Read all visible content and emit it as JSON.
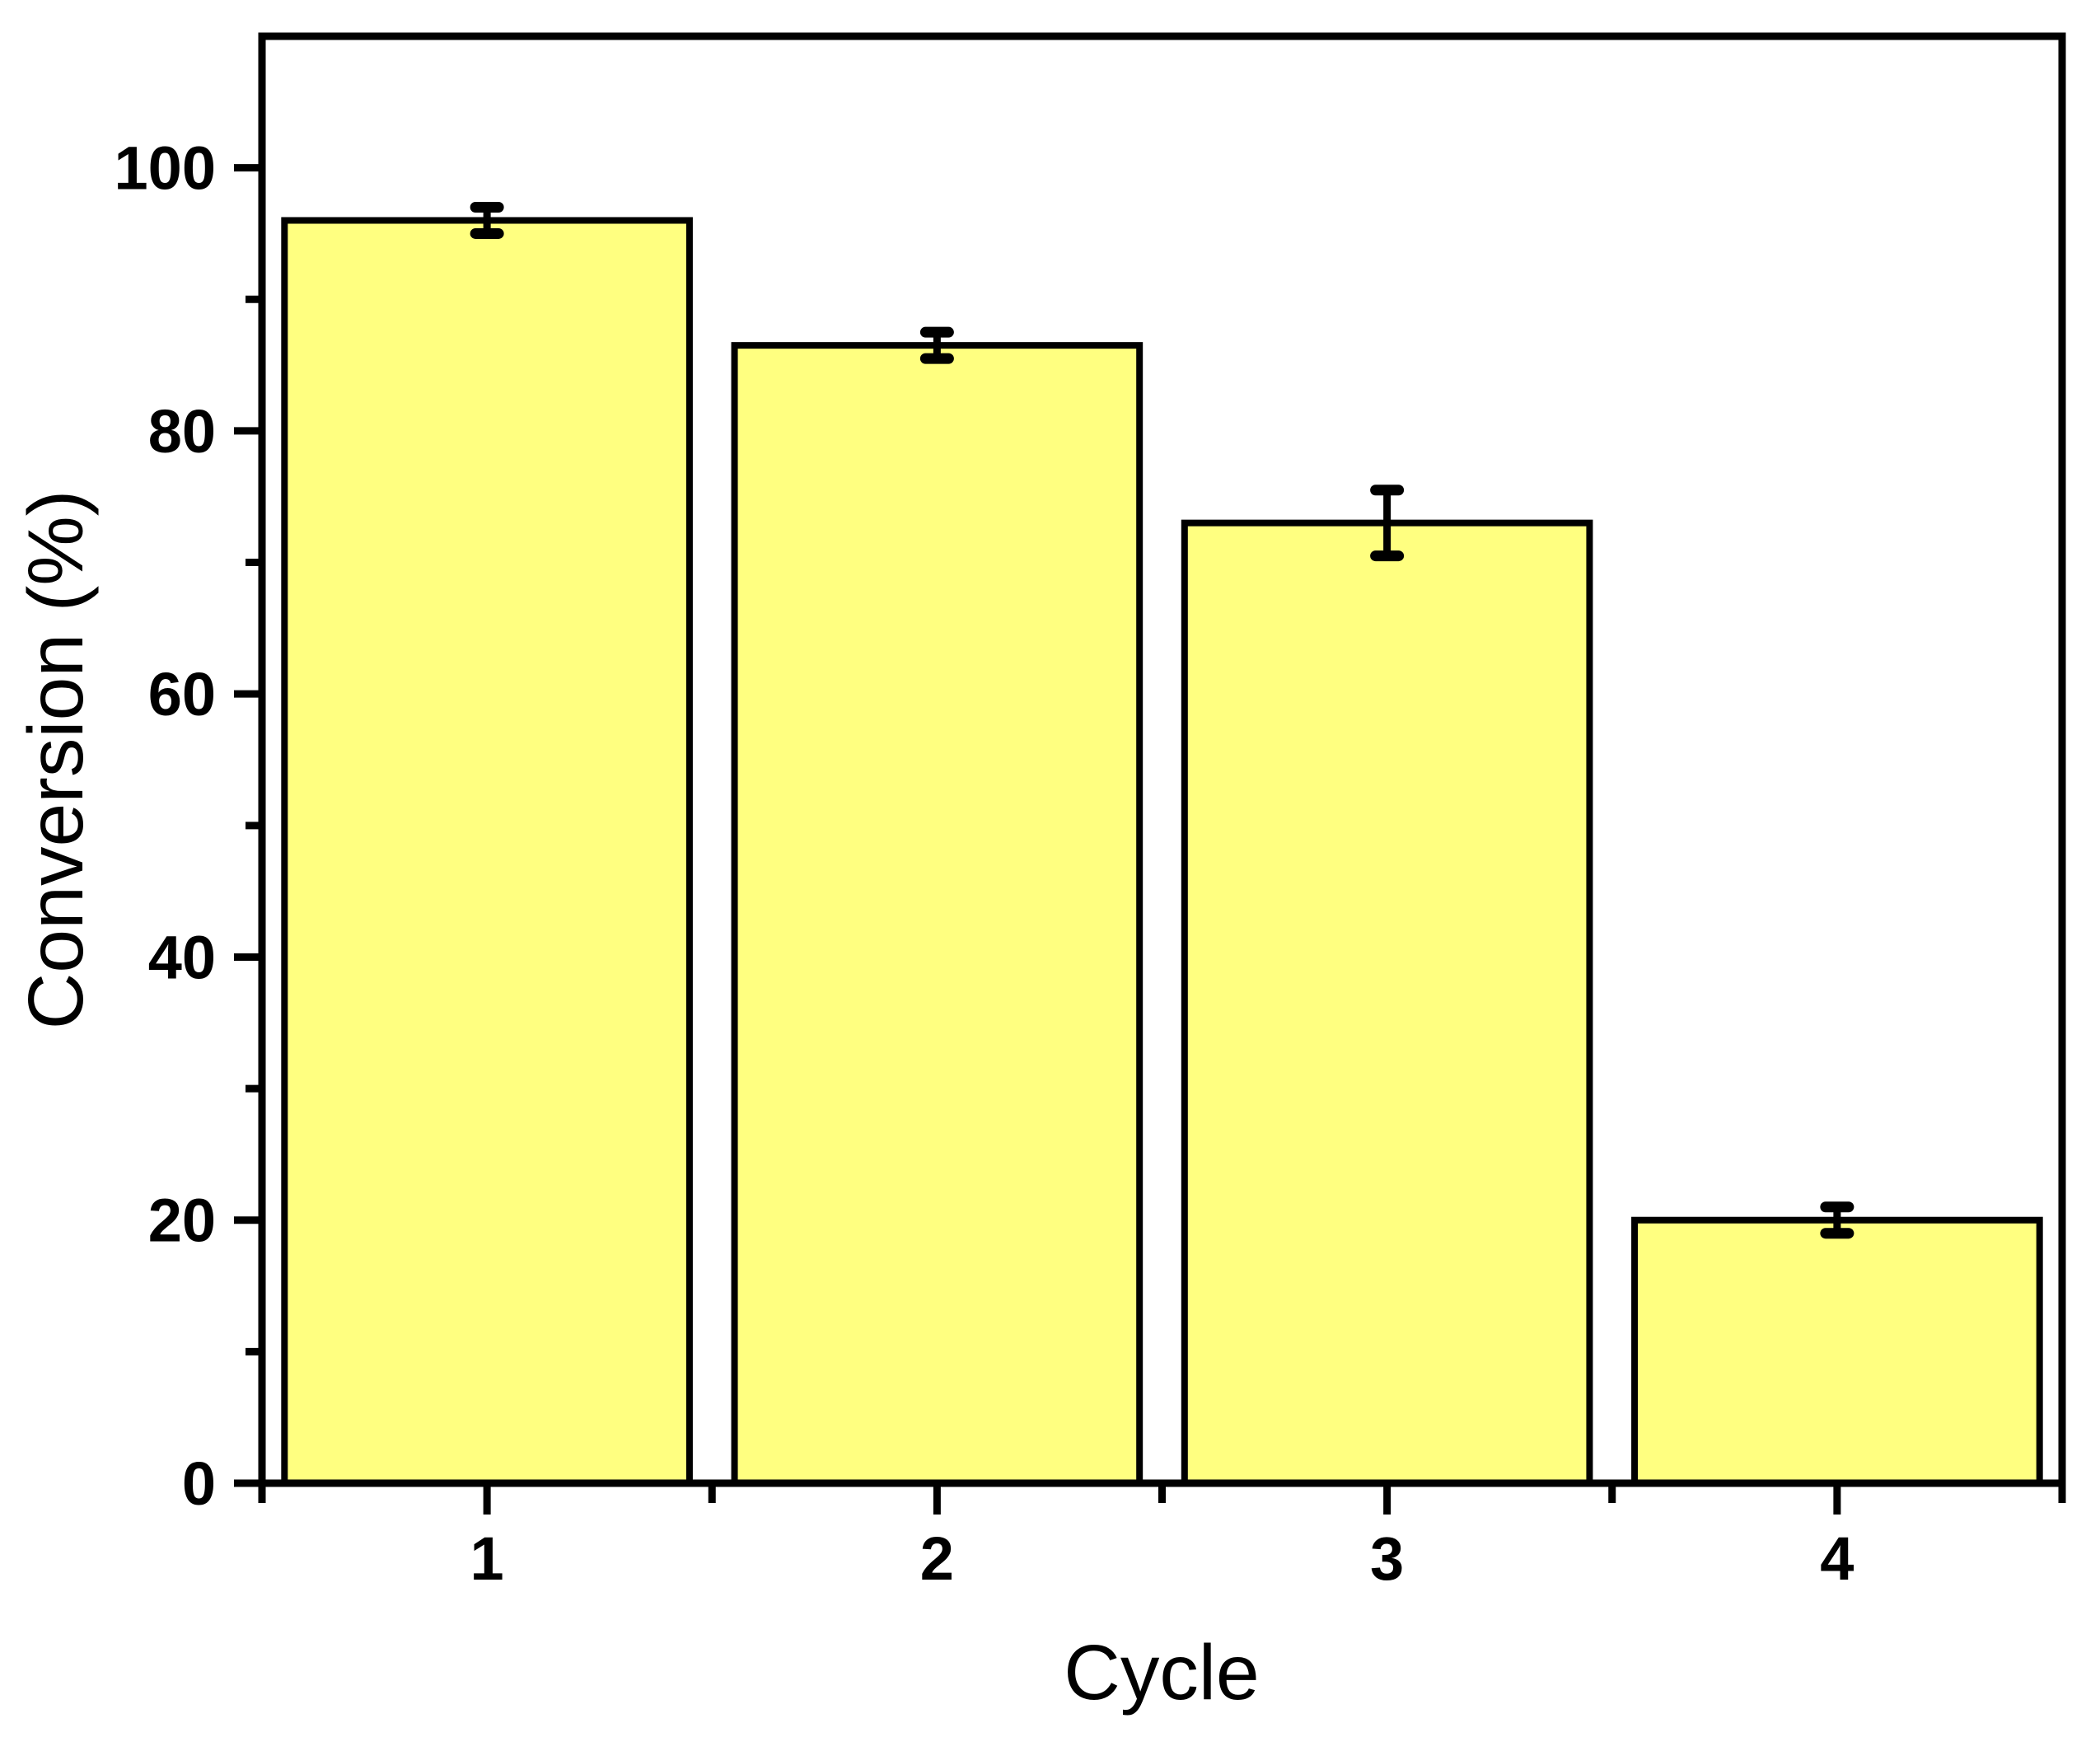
{
  "chart_data": {
    "type": "bar",
    "categories": [
      "1",
      "2",
      "3",
      "4"
    ],
    "values": [
      96,
      86.5,
      73,
      20
    ],
    "errors": [
      1,
      1,
      2.5,
      1
    ],
    "title": "",
    "xlabel": "Cycle",
    "ylabel": "Conversion (%)",
    "ylim": [
      0,
      110
    ],
    "xlim": [
      0.5,
      4.5
    ],
    "yticks": [
      0,
      20,
      40,
      60,
      80,
      100
    ],
    "y_minor_ticks": [
      10,
      30,
      50,
      70,
      90
    ],
    "x_minor_positions": [
      0.5,
      1.5,
      2.5,
      3.5,
      4.5
    ],
    "grid": false,
    "legend": "none",
    "frame": "full-box",
    "bar_color": "#FFFF80",
    "bar_border_color": "#000000",
    "error_bar_color": "#000000",
    "axis_color": "#000000",
    "bar_width_fraction": 0.9
  }
}
